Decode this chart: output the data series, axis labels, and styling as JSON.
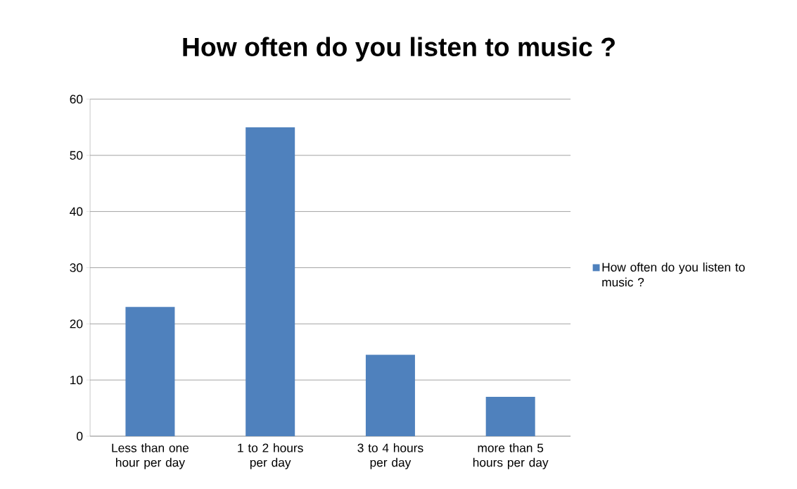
{
  "chart_data": {
    "type": "bar",
    "title": "How often do you listen to music ?",
    "categories": [
      "Less than one hour per day",
      "1 to 2 hours per day",
      "3 to 4 hours per day",
      "more than 5 hours per day"
    ],
    "series": [
      {
        "name": "How often do you listen to music ?",
        "color": "#4f81bd",
        "values": [
          23,
          55,
          14.5,
          7
        ]
      }
    ],
    "ylim": [
      0,
      60
    ],
    "yticks": [
      0,
      10,
      20,
      30,
      40,
      50,
      60
    ],
    "grid": "y",
    "legend": "right"
  }
}
